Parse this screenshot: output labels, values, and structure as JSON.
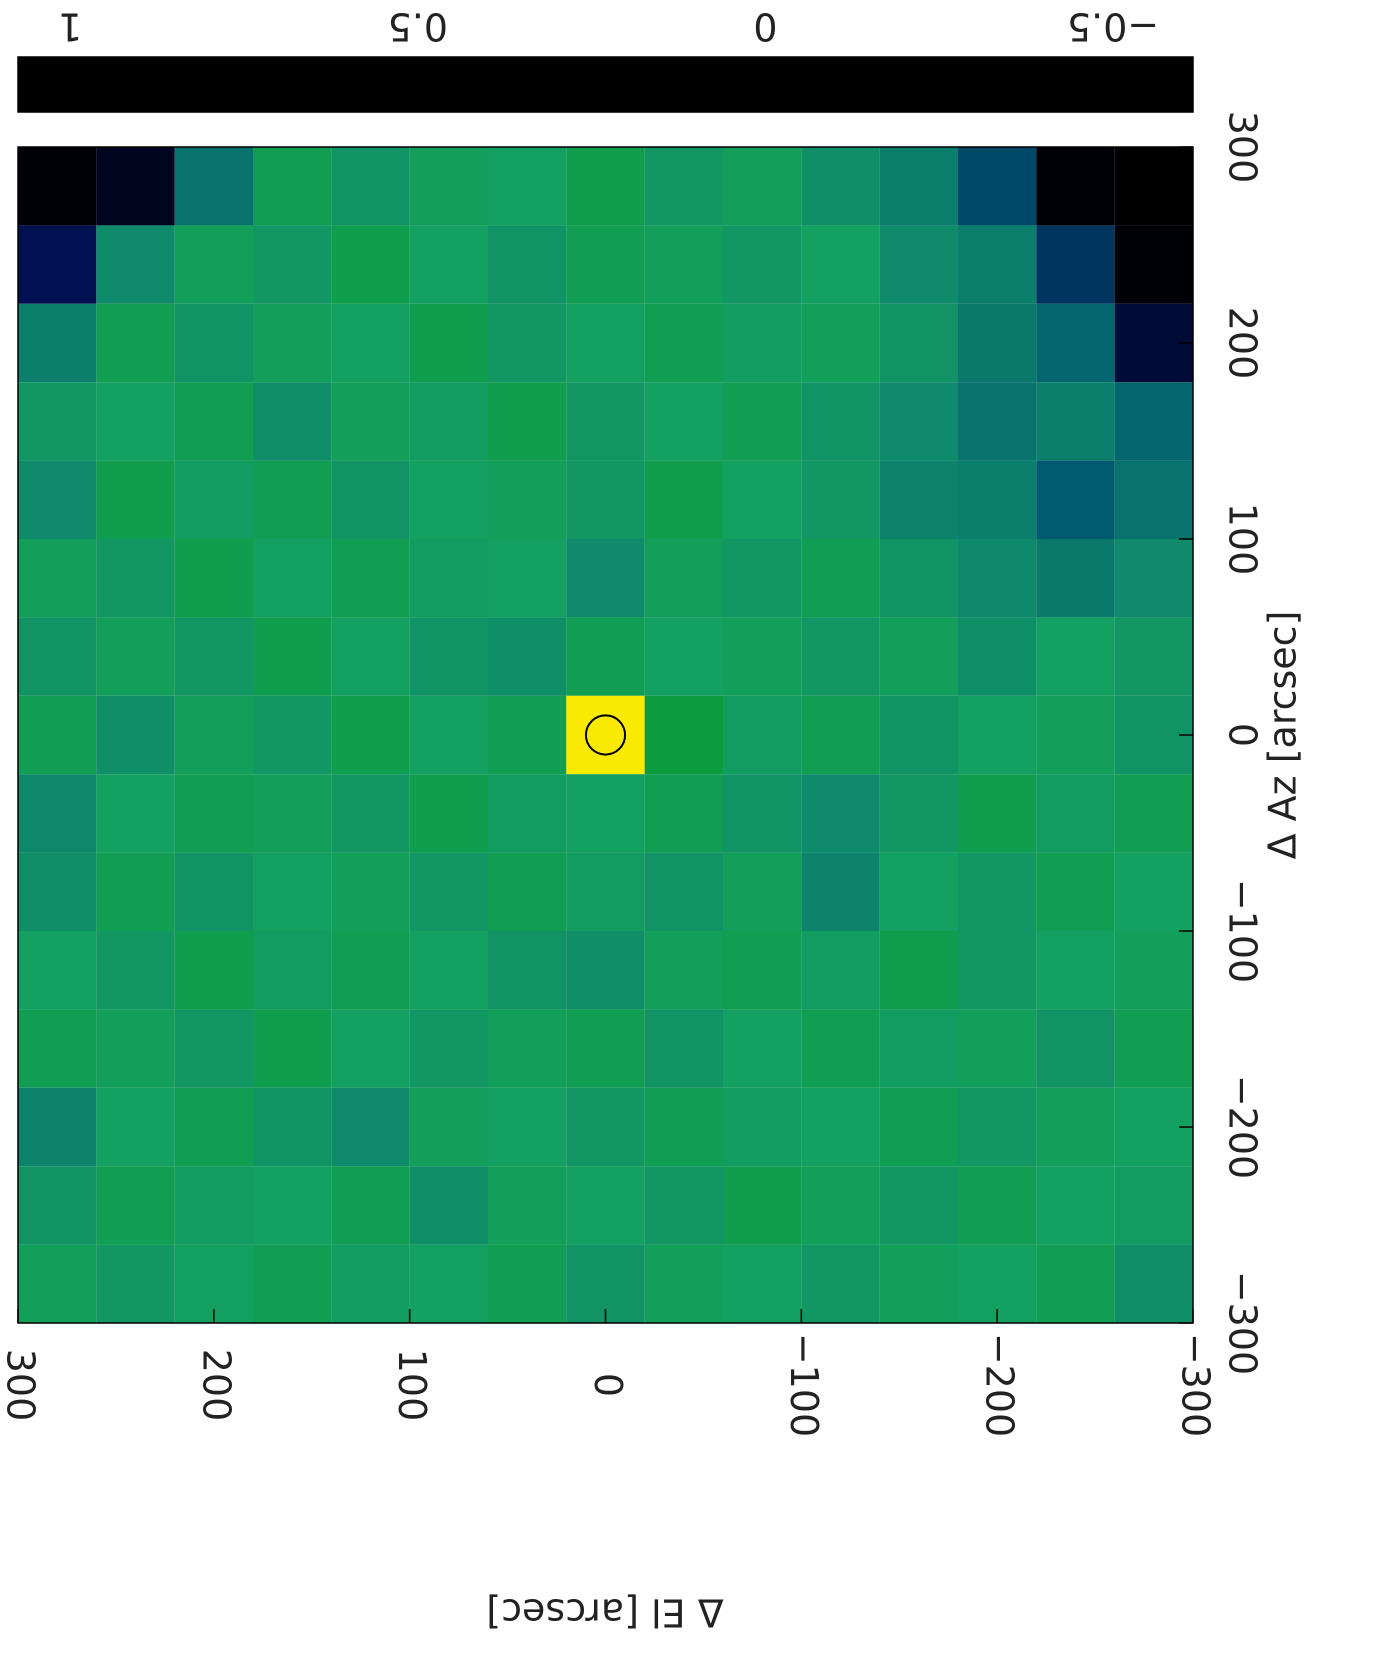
{
  "chart_data": {
    "type": "heatmap",
    "xlabel": "Δ El [arcsec]",
    "ylabel": "Δ Az [arcsec]",
    "xlim": [
      300,
      -300
    ],
    "ylim": [
      -300,
      300
    ],
    "xticks": [
      300,
      200,
      100,
      0,
      {
        "value": -100,
        "label": "−100"
      },
      {
        "value": -200,
        "label": "−200"
      },
      {
        "value": -300,
        "label": "−300"
      }
    ],
    "yticks": [
      300,
      200,
      100,
      0,
      {
        "value": -100,
        "label": "−100"
      },
      {
        "value": -200,
        "label": "−200"
      },
      {
        "value": -300,
        "label": "−300"
      }
    ],
    "x": [
      280,
      240,
      200,
      160,
      120,
      80,
      40,
      0,
      -40,
      -80,
      -120,
      -160,
      -200,
      -240,
      -280
    ],
    "y": [
      280,
      240,
      200,
      160,
      120,
      80,
      40,
      0,
      -40,
      -80,
      -120,
      -160,
      -200,
      -240,
      -280
    ],
    "cell": 40,
    "z": [
      [
        -0.6,
        -0.55,
        -0.15,
        0.02,
        -0.03,
        0.01,
        0.0,
        0.03,
        -0.02,
        0.01,
        -0.04,
        -0.1,
        -0.3,
        -0.6,
        -0.62
      ],
      [
        -0.45,
        -0.05,
        0.01,
        -0.02,
        0.03,
        0.0,
        -0.03,
        0.02,
        0.01,
        -0.02,
        0.0,
        -0.05,
        -0.1,
        -0.35,
        -0.6
      ],
      [
        -0.1,
        0.02,
        -0.03,
        0.01,
        0.0,
        0.03,
        -0.02,
        0.0,
        0.02,
        -0.01,
        0.01,
        -0.03,
        -0.12,
        -0.2,
        -0.5
      ],
      [
        -0.02,
        0.0,
        0.02,
        -0.04,
        0.01,
        -0.01,
        0.03,
        -0.02,
        0.0,
        0.02,
        -0.03,
        -0.05,
        -0.15,
        -0.1,
        -0.2
      ],
      [
        -0.05,
        0.03,
        -0.01,
        0.02,
        -0.03,
        0.0,
        0.01,
        -0.02,
        0.03,
        0.0,
        -0.02,
        -0.08,
        -0.1,
        -0.25,
        -0.15
      ],
      [
        0.01,
        -0.02,
        0.03,
        0.0,
        0.02,
        -0.01,
        0.0,
        -0.05,
        0.01,
        -0.02,
        0.02,
        -0.03,
        -0.06,
        -0.12,
        -0.05
      ],
      [
        -0.03,
        0.01,
        -0.02,
        0.03,
        0.0,
        -0.03,
        -0.04,
        0.02,
        0.0,
        0.01,
        -0.02,
        0.01,
        -0.04,
        0.0,
        -0.02
      ],
      [
        0.02,
        -0.04,
        0.01,
        -0.02,
        0.03,
        0.0,
        0.02,
        1.0,
        0.05,
        -0.01,
        0.02,
        -0.03,
        0.0,
        0.01,
        -0.03
      ],
      [
        -0.06,
        0.0,
        0.02,
        0.01,
        -0.02,
        0.03,
        -0.01,
        0.0,
        0.02,
        -0.03,
        -0.05,
        -0.02,
        0.03,
        -0.01,
        0.02
      ],
      [
        -0.04,
        0.02,
        -0.03,
        0.0,
        0.01,
        -0.02,
        0.02,
        -0.01,
        -0.03,
        0.01,
        -0.08,
        0.0,
        -0.02,
        0.02,
        0.0
      ],
      [
        0.0,
        -0.02,
        0.03,
        -0.01,
        0.02,
        0.0,
        -0.03,
        -0.04,
        0.01,
        0.02,
        -0.01,
        0.03,
        -0.02,
        0.0,
        0.01
      ],
      [
        0.02,
        0.01,
        -0.02,
        0.03,
        0.0,
        -0.02,
        0.01,
        0.02,
        -0.03,
        0.0,
        0.02,
        -0.01,
        0.01,
        -0.03,
        0.02
      ],
      [
        -0.08,
        0.0,
        0.02,
        -0.03,
        -0.05,
        0.01,
        0.0,
        -0.02,
        0.02,
        -0.01,
        0.0,
        0.02,
        -0.02,
        0.01,
        0.0
      ],
      [
        -0.03,
        0.02,
        -0.01,
        0.0,
        0.02,
        -0.04,
        0.01,
        0.0,
        -0.02,
        0.03,
        0.01,
        -0.02,
        0.02,
        0.0,
        -0.01
      ],
      [
        0.01,
        -0.02,
        0.0,
        0.02,
        -0.01,
        0.0,
        0.02,
        -0.03,
        0.01,
        0.0,
        -0.02,
        0.01,
        0.0,
        0.02,
        -0.04
      ]
    ],
    "beam": {
      "x": 0,
      "y": 0,
      "radius": 10
    },
    "colorbar": {
      "lim": [
        1.075,
        -0.615
      ],
      "ticks": [
        1,
        0.5,
        0,
        {
          "value": -0.5,
          "label": "−0.5"
        }
      ],
      "stops": [
        [
          -0.615,
          "#000000"
        ],
        [
          -0.45,
          "#001050"
        ],
        [
          -0.25,
          "#005a70"
        ],
        [
          -0.05,
          "#0f8a6a"
        ],
        [
          0,
          "#14a060"
        ],
        [
          0.15,
          "#009000"
        ],
        [
          0.3,
          "#c80000"
        ],
        [
          0.5,
          "#d83a00"
        ],
        [
          0.75,
          "#eaa000"
        ],
        [
          1.075,
          "#ffff00"
        ]
      ]
    }
  }
}
